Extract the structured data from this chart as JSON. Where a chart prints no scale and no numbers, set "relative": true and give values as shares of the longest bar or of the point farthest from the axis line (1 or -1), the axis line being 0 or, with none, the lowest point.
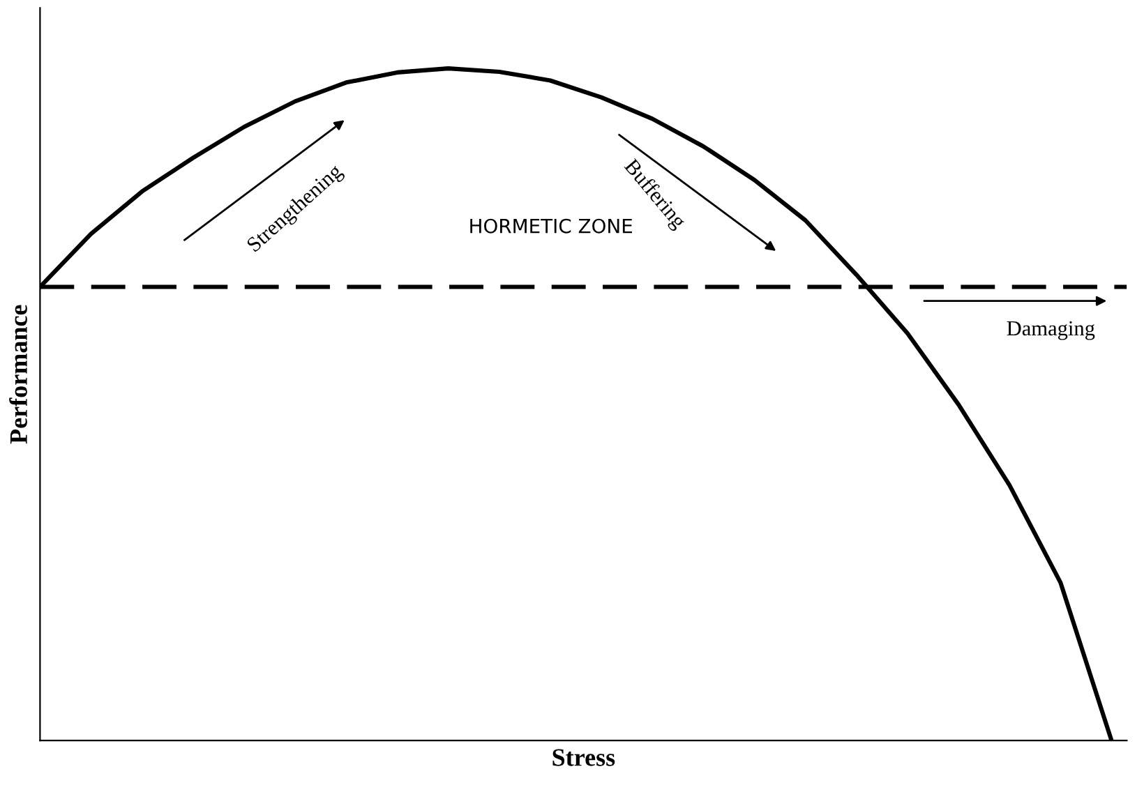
{
  "chart_data": {
    "type": "line",
    "relative": true,
    "xlabel": "Stress",
    "ylabel": "Performance",
    "categories": [
      null,
      null,
      null,
      null,
      null,
      null,
      null,
      null,
      null,
      null,
      null,
      null,
      null,
      null,
      null,
      null,
      null,
      null,
      null,
      null,
      null,
      null
    ],
    "series": [
      {
        "color": "#000000",
        "values": [
          0.675,
          0.754,
          0.817,
          0.867,
          0.913,
          0.951,
          0.979,
          0.994,
          1,
          0.995,
          0.982,
          0.957,
          0.925,
          0.884,
          0.834,
          0.774,
          0.693,
          0.606,
          0.5,
          0.38,
          0.235,
          0
        ]
      }
    ],
    "ref_lines": [
      {
        "axis": "y",
        "value": 0.675,
        "color": "#000000",
        "line_style": "dashed"
      }
    ],
    "annotations": [
      "Strengthening",
      "Buffering",
      "HORMETIC ZONE",
      "Damaging"
    ],
    "legend": false,
    "marker": "none",
    "line_style": "solid"
  }
}
